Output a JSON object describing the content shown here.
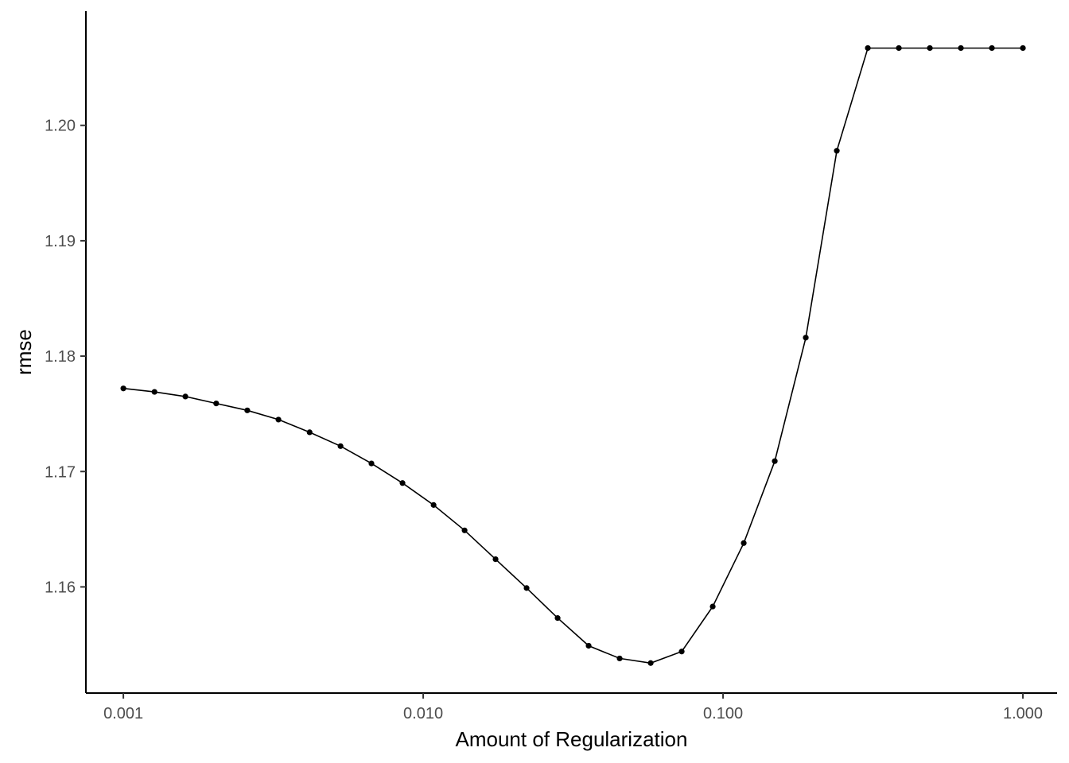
{
  "chart_data": {
    "type": "line",
    "title": "",
    "xlabel": "Amount of Regularization",
    "ylabel": "rmse",
    "x_scale": "log10",
    "xlim": [
      0.00075,
      1.3
    ],
    "ylim": [
      1.1508,
      1.2099
    ],
    "x_ticks": [
      0.001,
      0.01,
      0.1,
      1
    ],
    "x_tick_labels": [
      "0.001",
      "0.010",
      "0.100",
      "1.000"
    ],
    "y_ticks": [
      1.16,
      1.17,
      1.18,
      1.19,
      1.2
    ],
    "y_tick_labels": [
      "1.16",
      "1.17",
      "1.18",
      "1.19",
      "1.20"
    ],
    "grid": false,
    "legend": "none",
    "series": [
      {
        "color": "#000000",
        "x": [
          0.001,
          0.00127,
          0.00161,
          0.00204,
          0.00259,
          0.00329,
          0.00418,
          0.0053,
          0.00672,
          0.00853,
          0.01083,
          0.01374,
          0.01743,
          0.02212,
          0.02807,
          0.03562,
          0.0452,
          0.05736,
          0.07279,
          0.09237,
          0.11721,
          0.14874,
          0.18874,
          0.23951,
          0.30392,
          0.38566,
          0.48939,
          0.62102,
          0.78805,
          1.0
        ],
        "y": [
          1.1772,
          1.1769,
          1.1765,
          1.1759,
          1.1753,
          1.1745,
          1.1734,
          1.1722,
          1.1707,
          1.169,
          1.1671,
          1.1649,
          1.1624,
          1.1599,
          1.1573,
          1.1549,
          1.1538,
          1.1534,
          1.1544,
          1.1583,
          1.1638,
          1.1709,
          1.1816,
          1.1978,
          1.2067,
          1.2067,
          1.2067,
          1.2067,
          1.2067,
          1.2067
        ]
      }
    ]
  }
}
